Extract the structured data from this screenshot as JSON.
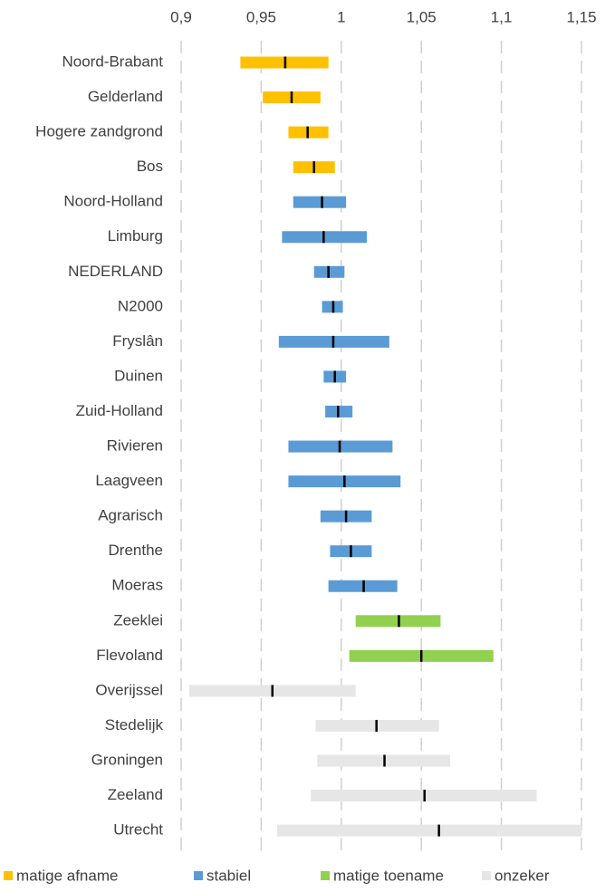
{
  "chart_data": {
    "type": "range",
    "xlim": [
      0.9,
      1.15
    ],
    "xticks": [
      {
        "value": 0.9,
        "label": "0,9"
      },
      {
        "value": 0.95,
        "label": "0,95"
      },
      1,
      {
        "value": 1.05,
        "label": "1,05"
      },
      {
        "value": 1.1,
        "label": "1,1"
      },
      {
        "value": 1.15,
        "label": "1,15"
      }
    ],
    "grid": true,
    "legend": "bottom",
    "series": [
      {
        "name": "matige afname",
        "color": "#ffc000",
        "categories": [
          "Noord-Brabant",
          "Gelderland",
          "Hogere zandgrond",
          "Bos"
        ],
        "low": [
          0.937,
          0.951,
          0.967,
          0.97
        ],
        "values": [
          0.965,
          0.969,
          0.979,
          0.983
        ],
        "high": [
          0.992,
          0.987,
          0.992,
          0.996
        ]
      },
      {
        "name": "stabiel",
        "color": "#5b9bd5",
        "categories": [
          "Noord-Holland",
          "Limburg",
          "NEDERLAND",
          "N2000",
          "Fryslân",
          "Duinen",
          "Zuid-Holland",
          "Rivieren",
          "Laagveen",
          "Agrarisch",
          "Drenthe",
          "Moeras"
        ],
        "low": [
          0.97,
          0.963,
          0.983,
          0.988,
          0.961,
          0.989,
          0.99,
          0.967,
          0.967,
          0.987,
          0.993,
          0.992
        ],
        "values": [
          0.988,
          0.989,
          0.992,
          0.995,
          0.995,
          0.996,
          0.998,
          0.999,
          1.002,
          1.003,
          1.006,
          1.014
        ],
        "high": [
          1.003,
          1.016,
          1.002,
          1.001,
          1.03,
          1.003,
          1.007,
          1.032,
          1.037,
          1.019,
          1.019,
          1.035
        ]
      },
      {
        "name": "matige toename",
        "color": "#92d050",
        "categories": [
          "Zeeklei",
          "Flevoland"
        ],
        "low": [
          1.009,
          1.005
        ],
        "values": [
          1.036,
          1.05
        ],
        "high": [
          1.062,
          1.095
        ]
      },
      {
        "name": "onzeker",
        "color": "#e7e6e6",
        "categories": [
          "Overijssel",
          "Stedelijk",
          "Groningen",
          "Zeeland",
          "Utrecht"
        ],
        "low": [
          0.905,
          0.984,
          0.985,
          0.981,
          0.96
        ],
        "values": [
          0.957,
          1.022,
          1.027,
          1.052,
          1.061
        ],
        "high": [
          1.009,
          1.061,
          1.068,
          1.122,
          1.15
        ]
      }
    ]
  }
}
